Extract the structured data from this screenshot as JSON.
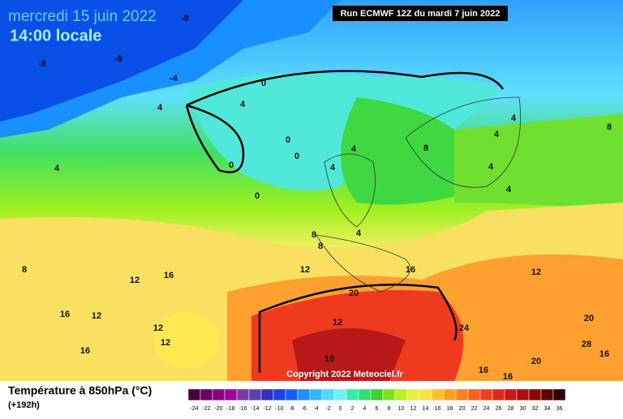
{
  "header": {
    "title": "mercredi 15 juin 2022",
    "time": "14:00 locale",
    "run": "Run ECMWF 12Z du mardi 7 juin 2022"
  },
  "copyright": "Copyright 2022 Meteociel.fr",
  "legend": {
    "title": "Température à 850hPa (°C)",
    "lead": "(+192h)",
    "labels": [
      -24,
      -22,
      -20,
      -18,
      -16,
      -14,
      -12,
      -10,
      -8,
      -6,
      -4,
      -2,
      0,
      2,
      4,
      6,
      8,
      10,
      12,
      14,
      16,
      18,
      20,
      22,
      24,
      26,
      28,
      30,
      32,
      34,
      36
    ],
    "colors": [
      "#4b0040",
      "#6a0060",
      "#8a0080",
      "#a000a0",
      "#7a3aa0",
      "#5a40b0",
      "#3030c0",
      "#2040e0",
      "#1060ff",
      "#2090ff",
      "#30b8ff",
      "#50d8ff",
      "#70f0f0",
      "#40e8b0",
      "#30e070",
      "#40d030",
      "#80e020",
      "#b8f020",
      "#e8f040",
      "#ffe040",
      "#ffc030",
      "#ffa020",
      "#ff8020",
      "#ff6020",
      "#f04020",
      "#e02818",
      "#c81818",
      "#a81010",
      "#880808",
      "#600000",
      "#300000"
    ]
  },
  "map_labels": [
    -8,
    -8,
    -8,
    -4,
    4,
    4,
    0,
    0,
    0,
    0,
    0,
    4,
    4,
    4,
    4,
    8,
    4,
    4,
    8,
    4,
    4,
    8,
    8,
    8,
    12,
    16,
    12,
    12,
    16,
    20,
    16,
    12,
    12,
    12,
    12,
    24,
    20,
    16,
    28,
    16,
    20,
    16,
    16,
    16
  ]
}
